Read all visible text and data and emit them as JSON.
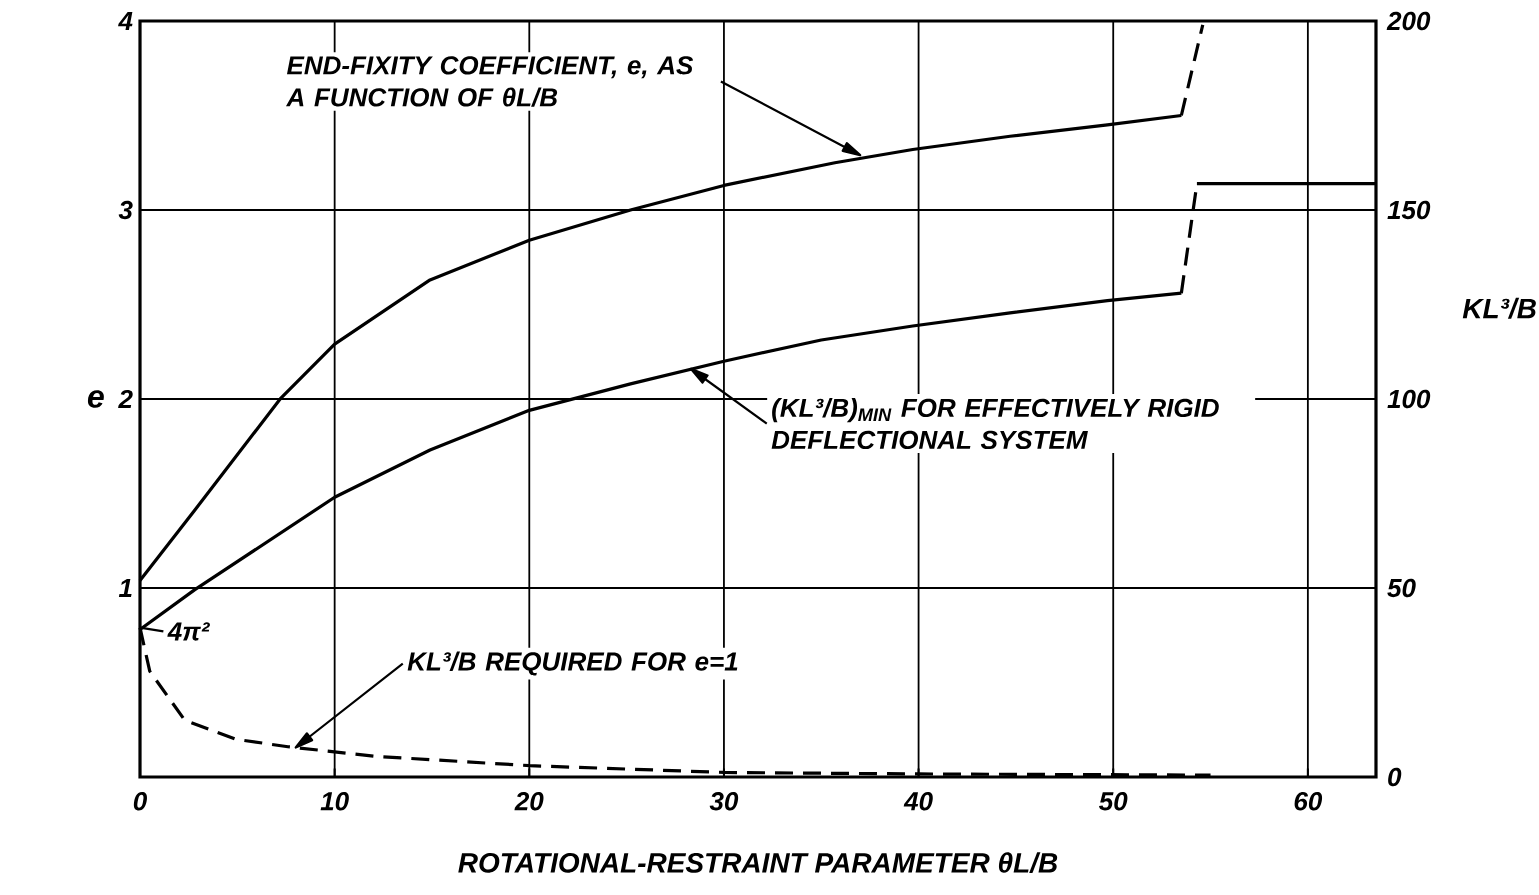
{
  "chart_data": {
    "type": "line",
    "xlabel": "ROTATIONAL-RESTRAINT PARAMETER θL/B",
    "ylabel": "e",
    "y2label": "KL³/B",
    "xlim": [
      0,
      63.5
    ],
    "xticks": [
      0,
      10,
      20,
      30,
      40,
      50,
      60
    ],
    "ylim": [
      0,
      4
    ],
    "yticks": [
      1,
      2,
      3,
      4
    ],
    "y2lim": [
      0,
      200
    ],
    "y2ticks": [
      0,
      50,
      100,
      150,
      200
    ],
    "grid": true,
    "marker": "none",
    "line_style": "solid",
    "series": [
      {
        "color": "#000000",
        "x": [
          0,
          2.8,
          7.2,
          10,
          14.9,
          20,
          25.2,
          30,
          35.7,
          39.7,
          44.7,
          49.7,
          53.5
        ],
        "values": [
          1.04,
          1.41,
          2.0,
          2.29,
          2.63,
          2.84,
          3.0,
          3.13,
          3.25,
          3.32,
          3.39,
          3.45,
          3.5
        ]
      },
      {
        "color": "#000000",
        "line_style": "dashed",
        "x": [
          53.5,
          54.6
        ],
        "values": [
          3.5,
          3.98
        ]
      },
      {
        "color": "#000000",
        "axis": "y2",
        "x": [
          0,
          2.8,
          10,
          14.9,
          20,
          25.2,
          30,
          35,
          39.7,
          44.7,
          49.7,
          53.5
        ],
        "values": [
          39,
          49.5,
          74,
          86.5,
          97,
          104,
          110,
          115.6,
          119.3,
          122.8,
          126,
          128
        ]
      },
      {
        "color": "#000000",
        "axis": "y2",
        "line_style": "dashed",
        "x": [
          53.5,
          54.3
        ],
        "values": [
          128,
          157
        ]
      },
      {
        "color": "#000000",
        "axis": "y2",
        "x": [
          54.3,
          63.5
        ],
        "values": [
          157,
          157
        ]
      },
      {
        "color": "#000000",
        "axis": "y2",
        "line_style": "dashed",
        "x": [
          0,
          0.5,
          2.3,
          4.9,
          7.6,
          12,
          20,
          30,
          40,
          55
        ],
        "values": [
          39.5,
          28,
          15,
          10,
          8,
          5.5,
          3,
          1.2,
          0.8,
          0.5
        ]
      }
    ],
    "annotations": [
      {
        "text": "END-FIXITY COEFFICIENT, e, AS A FUNCTION OF θL/B",
        "x": 37,
        "y": 3.29
      },
      {
        "text": "(KL³/B)$_{MIN}$ FOR EFFECTIVELY RIGID DEFLECTIONAL SYSTEM",
        "x": 28.3,
        "y": 2.16
      },
      {
        "text": "4π²",
        "x": 0,
        "y": 0.79
      },
      {
        "text": "KL³/B REQUIRED FOR e=1",
        "x": 8,
        "y": 0.156
      }
    ]
  }
}
